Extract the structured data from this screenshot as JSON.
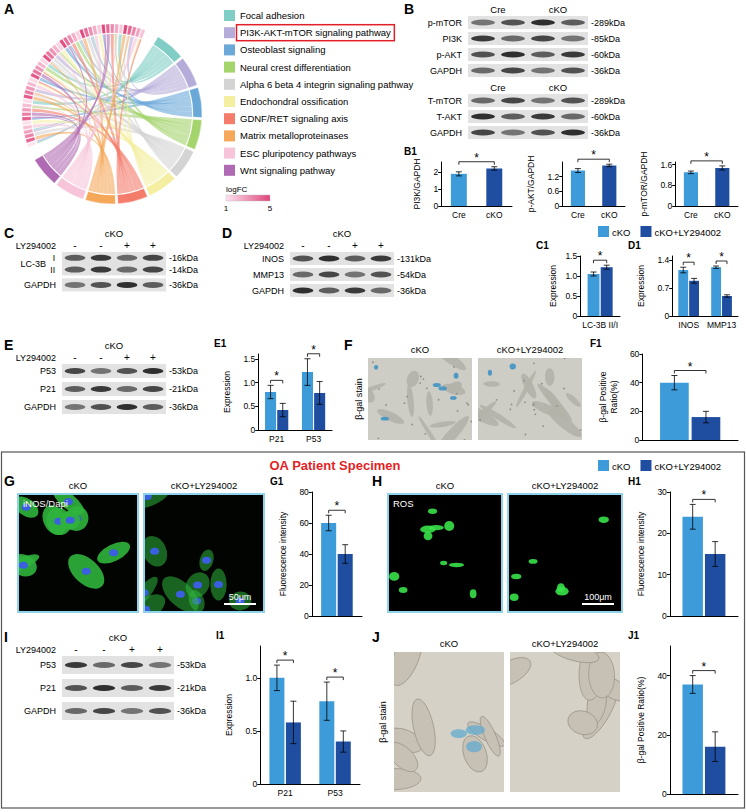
{
  "chart_data": [
    {
      "panel": "B1",
      "type": "bar",
      "ylabel": "PI3K/GAPDH",
      "categories": [
        "Cre",
        "cKO"
      ],
      "values": [
        1.9,
        2.22
      ],
      "errors": [
        0.12,
        0.1
      ],
      "colors": [
        "#3c9bd8",
        "#1f4ea1"
      ],
      "ylim": [
        0,
        2.6
      ],
      "yticks": [
        0,
        1,
        2
      ],
      "annotations": [
        {
          "text": "*",
          "between": [
            "Cre",
            "cKO"
          ]
        }
      ]
    },
    {
      "type": "bar",
      "ylabel": "p-AKT/GAPDH",
      "categories": [
        "Cre",
        "cKO"
      ],
      "values": [
        1.45,
        1.66
      ],
      "errors": [
        0.08,
        0.05
      ],
      "colors": [
        "#3c9bd8",
        "#1f4ea1"
      ],
      "ylim": [
        0,
        1.8
      ],
      "yticks": [
        0,
        0.6,
        1.2
      ],
      "annotations": [
        {
          "text": "*",
          "between": [
            "Cre",
            "cKO"
          ]
        }
      ]
    },
    {
      "type": "bar",
      "ylabel": "p-mTOR/GAPDH",
      "categories": [
        "Cre",
        "cKO"
      ],
      "values": [
        1.3,
        1.47
      ],
      "errors": [
        0.05,
        0.08
      ],
      "colors": [
        "#3c9bd8",
        "#1f4ea1"
      ],
      "ylim": [
        0,
        1.7
      ],
      "yticks": [
        0,
        0.8,
        1.6
      ],
      "annotations": [
        {
          "text": "*",
          "between": [
            "Cre",
            "cKO"
          ]
        }
      ]
    },
    {
      "panel": "C1",
      "type": "bar",
      "ylabel": "Expression",
      "categories": [
        "LC-3B II/I"
      ],
      "series": [
        {
          "name": "cKO",
          "color": "#3c9bd8",
          "values": [
            1.05
          ],
          "errors": [
            0.05
          ]
        },
        {
          "name": "cKO+LY294002",
          "color": "#1f4ea1",
          "values": [
            1.22
          ],
          "errors": [
            0.05
          ]
        }
      ],
      "ylim": [
        0,
        1.5
      ],
      "yticks": [
        0,
        0.5,
        {
          "value": 1,
          "label": "1.0"
        },
        1.5
      ],
      "annotations": [
        {
          "text": "*",
          "category": "LC-3B II/I"
        }
      ]
    },
    {
      "panel": "D1",
      "type": "bar",
      "ylabel": "Expression",
      "categories": [
        "INOS",
        "MMP13"
      ],
      "series": [
        {
          "name": "cKO",
          "color": "#3c9bd8",
          "values": [
            1.15,
            1.22
          ],
          "errors": [
            0.07,
            0.03
          ]
        },
        {
          "name": "cKO+LY294002",
          "color": "#1f4ea1",
          "values": [
            0.88,
            0.5
          ],
          "errors": [
            0.06,
            0.03
          ]
        }
      ],
      "ylim": [
        0,
        1.5
      ],
      "yticks": [
        0,
        0.7,
        1.4
      ],
      "annotations": [
        {
          "text": "*",
          "category": "INOS"
        },
        {
          "text": "*",
          "category": "MMP13"
        }
      ]
    },
    {
      "panel": "E1",
      "type": "bar",
      "ylabel": "Expression",
      "categories": [
        "P21",
        "P53"
      ],
      "series": [
        {
          "name": "cKO",
          "color": "#3c9bd8",
          "values": [
            0.8,
            1.22
          ],
          "errors": [
            0.14,
            0.28
          ]
        },
        {
          "name": "cKO+LY294002",
          "color": "#1f4ea1",
          "values": [
            0.42,
            0.78
          ],
          "errors": [
            0.14,
            0.24
          ]
        }
      ],
      "ylim": [
        0,
        1.6
      ],
      "yticks": [
        0,
        0.5,
        {
          "value": 1,
          "label": "1.0"
        },
        1.5
      ],
      "annotations": [
        {
          "text": "*",
          "category": "P21"
        },
        {
          "text": "*",
          "category": "P53"
        }
      ]
    },
    {
      "panel": "F1",
      "type": "bar",
      "ylabel": "β-gal Positive Ratio(%)",
      "categories": [
        null
      ],
      "series": [
        {
          "name": "cKO",
          "color": "#3c9bd8",
          "values": [
            40
          ],
          "errors": [
            5
          ]
        },
        {
          "name": "cKO+LY294002",
          "color": "#1f4ea1",
          "values": [
            16
          ],
          "errors": [
            4
          ]
        }
      ],
      "ylim": [
        0,
        60
      ],
      "yticks": [
        0,
        20,
        40,
        60
      ],
      "annotations": [
        {
          "text": "*",
          "category": null
        }
      ]
    },
    {
      "panel": "G1",
      "type": "bar",
      "ylabel": "Fluorescence intensity",
      "categories": [
        null
      ],
      "series": [
        {
          "name": "cKO",
          "color": "#3c9bd8",
          "values": [
            60
          ],
          "errors": [
            5
          ]
        },
        {
          "name": "cKO+LY294002",
          "color": "#1f4ea1",
          "values": [
            40
          ],
          "errors": [
            6
          ]
        }
      ],
      "ylim": [
        0,
        80
      ],
      "yticks": [
        0,
        20,
        40,
        60,
        80
      ],
      "annotations": [
        {
          "text": "*",
          "category": null
        }
      ]
    },
    {
      "panel": "H1",
      "type": "bar",
      "ylabel": "Fluorescence intensity",
      "categories": [
        null
      ],
      "series": [
        {
          "name": "cKO",
          "color": "#3c9bd8",
          "values": [
            24
          ],
          "errors": [
            3
          ]
        },
        {
          "name": "cKO+LY294002",
          "color": "#1f4ea1",
          "values": [
            15
          ],
          "errors": [
            3
          ]
        }
      ],
      "ylim": [
        0,
        30
      ],
      "yticks": [
        0,
        10,
        20,
        30
      ],
      "annotations": [
        {
          "text": "*",
          "category": null
        }
      ]
    },
    {
      "panel": "I1",
      "type": "bar",
      "ylabel": "Expression",
      "categories": [
        "P21",
        "P53"
      ],
      "series": [
        {
          "name": "cKO",
          "color": "#3c9bd8",
          "values": [
            1.0,
            0.78
          ],
          "errors": [
            0.12,
            0.18
          ]
        },
        {
          "name": "cKO+LY294002",
          "color": "#1f4ea1",
          "values": [
            0.58,
            0.4
          ],
          "errors": [
            0.2,
            0.1
          ]
        }
      ],
      "ylim": [
        0,
        1.3
      ],
      "yticks": [
        0,
        0.5,
        {
          "value": 1,
          "label": "1.0"
        }
      ],
      "annotations": [
        {
          "text": "*",
          "category": "P21"
        },
        {
          "text": "*",
          "category": "P53"
        }
      ]
    },
    {
      "panel": "J1",
      "type": "bar",
      "ylabel": "β-gal Positive Ratio(%)",
      "categories": [
        null
      ],
      "series": [
        {
          "name": "cKO",
          "color": "#3c9bd8",
          "values": [
            37
          ],
          "errors": [
            3
          ]
        },
        {
          "name": "cKO+LY294002",
          "color": "#1f4ea1",
          "values": [
            16
          ],
          "errors": [
            5
          ]
        }
      ],
      "ylim": [
        0,
        50
      ],
      "yticks": [
        0,
        20,
        40
      ],
      "annotations": [
        {
          "text": "*",
          "category": null
        }
      ]
    }
  ],
  "pathway_panel": {
    "panel": "A",
    "pathways": [
      {
        "name": "Focal adhesion",
        "color": "#7fcdc4"
      },
      {
        "name": "PI3K-AKT-mTOR signaling pathway",
        "color": "#b5acd9",
        "highlighted": true
      },
      {
        "name": "Osteoblast signaling",
        "color": "#6aa8d8"
      },
      {
        "name": "Neural crest differentiation",
        "color": "#a4d46c"
      },
      {
        "name": "Alpha 6 beta 4 integrin signaling pathway",
        "color": "#d4d4d4"
      },
      {
        "name": "Endochondral ossification",
        "color": "#f4eea0"
      },
      {
        "name": "GDNF/RET signaling axis",
        "color": "#f47c6a"
      },
      {
        "name": "Matrix metalloproteinases",
        "color": "#f5a85a"
      },
      {
        "name": "ESC pluripotency pathways",
        "color": "#f7c4d9"
      },
      {
        "name": "Wnt signaling pathway",
        "color": "#b06ab3"
      }
    ],
    "colorbar": {
      "title": "logFC",
      "range": [
        1,
        5
      ],
      "ticks": [
        1,
        5
      ],
      "colors": [
        "#fde4ee",
        "#e0457b"
      ]
    }
  },
  "blots": [
    {
      "panel": "B",
      "groups": [
        "Cre",
        "cKO"
      ],
      "rows": [
        {
          "label": "p-mTOR",
          "kda": [
            "-289kDa"
          ]
        },
        {
          "label": "PI3K",
          "kda": [
            "-85kDa"
          ]
        },
        {
          "label": "p-AKT",
          "kda": [
            "-60kDa"
          ]
        },
        {
          "label": "GAPDH",
          "kda": [
            "-36kDa"
          ]
        }
      ]
    },
    {
      "groups": [
        "Cre",
        "cKO"
      ],
      "rows": [
        {
          "label": "T-mTOR",
          "kda": [
            "-289kDa"
          ]
        },
        {
          "label": "T-AKT",
          "kda": [
            "-60kDa"
          ]
        },
        {
          "label": "GAPDH",
          "kda": [
            "-36kDa"
          ]
        }
      ]
    },
    {
      "panel": "C",
      "header": "cKO",
      "treatment": "LY294002",
      "lanes": [
        "-",
        "-",
        "+",
        "+"
      ],
      "rows": [
        {
          "label": "LC-3B",
          "sublabels": [
            "I",
            "II"
          ],
          "kda": [
            "-16kDa",
            "-14kDa"
          ]
        },
        {
          "label": "GAPDH",
          "kda": [
            "-36kDa"
          ]
        }
      ]
    },
    {
      "panel": "D",
      "header": "cKO",
      "treatment": "LY294002",
      "lanes": [
        "-",
        "-",
        "+",
        "+"
      ],
      "rows": [
        {
          "label": "INOS",
          "kda": [
            "-131kDa"
          ]
        },
        {
          "label": "MMP13",
          "kda": [
            "-54kDa"
          ]
        },
        {
          "label": "GAPDH",
          "kda": [
            "-36kDa"
          ]
        }
      ]
    },
    {
      "panel": "E",
      "header": "cKO",
      "treatment": "LY294002",
      "lanes": [
        "-",
        "-",
        "+",
        "+"
      ],
      "rows": [
        {
          "label": "P53",
          "kda": [
            "-53kDa"
          ]
        },
        {
          "label": "P21",
          "kda": [
            "-21kDa"
          ]
        },
        {
          "label": "GAPDH",
          "kda": [
            "-36kDa"
          ]
        }
      ]
    },
    {
      "panel": "I",
      "header": "cKO",
      "treatment": "LY294002",
      "lanes": [
        "-",
        "-",
        "+",
        "+"
      ],
      "rows": [
        {
          "label": "P53",
          "kda": [
            "-53kDa"
          ]
        },
        {
          "label": "P21",
          "kda": [
            "-21kDa"
          ]
        },
        {
          "label": "GAPDH",
          "kda": [
            "-36kDa"
          ]
        }
      ]
    }
  ],
  "images": [
    {
      "panel": "F",
      "side_label": "β-gal stain",
      "labels": [
        "cKO",
        "cKO+LY294002"
      ]
    },
    {
      "panel": "G",
      "labels": [
        "cKO",
        "cKO+LY294002"
      ],
      "stain": "iNOS/Dapi",
      "scale_bar": "50μm"
    },
    {
      "panel": "H",
      "labels": [
        "cKO",
        "cKO+LY294002"
      ],
      "stain": "ROS",
      "scale_bar": "100μm"
    },
    {
      "panel": "J",
      "side_label": "β-gal stain",
      "labels": [
        "cKO",
        "cKO+LY294002"
      ]
    }
  ],
  "legends": [
    {
      "items": [
        {
          "name": "cKO",
          "color": "#3c9bd8"
        },
        {
          "name": "cKO+LY294002",
          "color": "#1f4ea1"
        }
      ]
    },
    {
      "items": [
        {
          "name": "cKO",
          "color": "#3c9bd8"
        },
        {
          "name": "cKO+LY294002",
          "color": "#1f4ea1"
        }
      ]
    }
  ],
  "section_title": {
    "text": "OA Patient Specimen",
    "color": "#e21f26"
  }
}
